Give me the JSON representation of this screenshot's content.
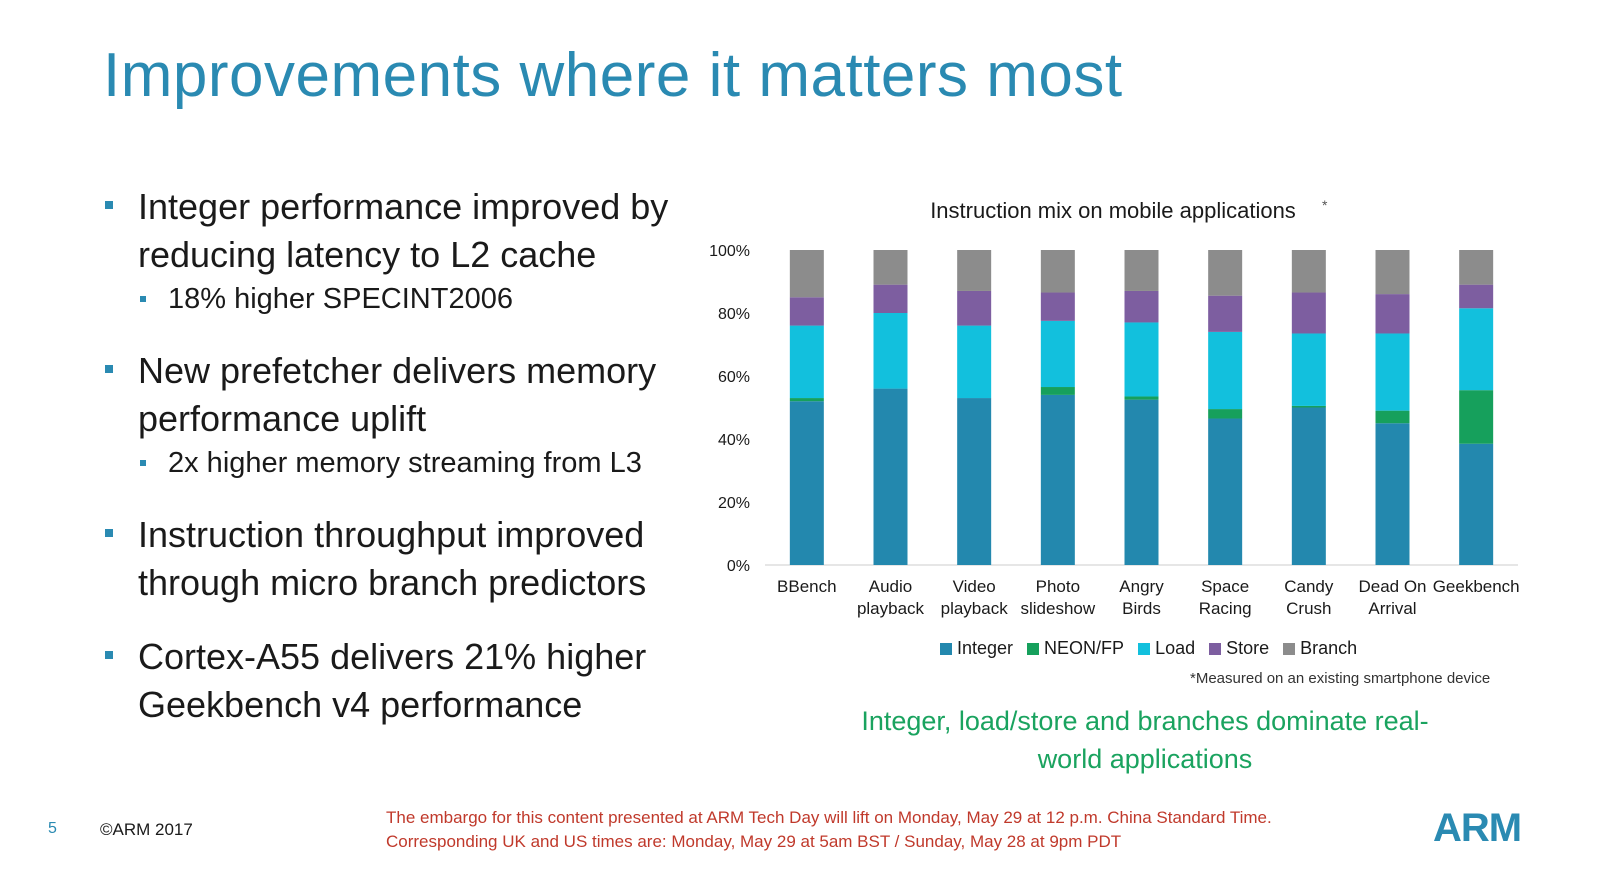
{
  "slide": {
    "title": "Improvements where it matters most",
    "page_number": "5",
    "copyright": "©ARM 2017",
    "embargo": "The embargo for this content presented at ARM Tech Day will lift on Monday, May 29 at 12 p.m. China Standard Time. Corresponding UK and US times are: Monday, May 29 at 5am BST / Sunday, May 28 at 9pm PDT",
    "logo": "ARM",
    "accent_color": "#2a8ab2"
  },
  "bullets": [
    {
      "text": "Integer performance improved by reducing latency to L2 cache",
      "sub": "18% higher SPECINT2006"
    },
    {
      "text": "New prefetcher delivers memory performance uplift",
      "sub": "2x higher memory streaming from L3"
    },
    {
      "text": "Instruction throughput improved through micro branch predictors",
      "sub": ""
    },
    {
      "text": "Cortex-A55 delivers 21% higher Geekbench v4 performance",
      "sub": ""
    }
  ],
  "chart_data": {
    "type": "bar",
    "stacked": true,
    "title": "Instruction mix on mobile applications",
    "title_mark": "*",
    "categories": [
      [
        "BBench"
      ],
      [
        "Audio",
        "playback"
      ],
      [
        "Video",
        "playback"
      ],
      [
        "Photo",
        "slideshow"
      ],
      [
        "Angry",
        "Birds"
      ],
      [
        "Space",
        "Racing"
      ],
      [
        "Candy",
        "Crush"
      ],
      [
        "Dead On",
        "Arrival"
      ],
      [
        "Geekbench"
      ]
    ],
    "ylim": [
      0,
      100
    ],
    "yticks": [
      0,
      20,
      40,
      60,
      80,
      100
    ],
    "ytick_labels": [
      "0%",
      "20%",
      "40%",
      "60%",
      "80%",
      "100%"
    ],
    "series": [
      {
        "name": "Integer",
        "color": "#2388ae",
        "values": [
          52,
          56,
          53,
          54,
          52.5,
          46.5,
          50,
          45,
          38.5
        ]
      },
      {
        "name": "NEON/FP",
        "color": "#16a05c",
        "values": [
          1,
          0,
          0,
          2.5,
          1,
          3,
          0.5,
          4,
          17
        ]
      },
      {
        "name": "Load",
        "color": "#12c0dd",
        "values": [
          23,
          24,
          23,
          21,
          23.5,
          24.5,
          23,
          24.5,
          26
        ]
      },
      {
        "name": "Store",
        "color": "#7d5ea0",
        "values": [
          9,
          9,
          11,
          9,
          10,
          11.5,
          13,
          12.5,
          7.5
        ]
      },
      {
        "name": "Branch",
        "color": "#8c8c8c",
        "values": [
          15,
          11,
          13,
          13.5,
          13,
          14.5,
          13.5,
          14,
          11
        ]
      }
    ],
    "footnote": "*Measured on an existing smartphone device"
  },
  "takeaway": "Integer, load/store and branches dominate real-world applications"
}
